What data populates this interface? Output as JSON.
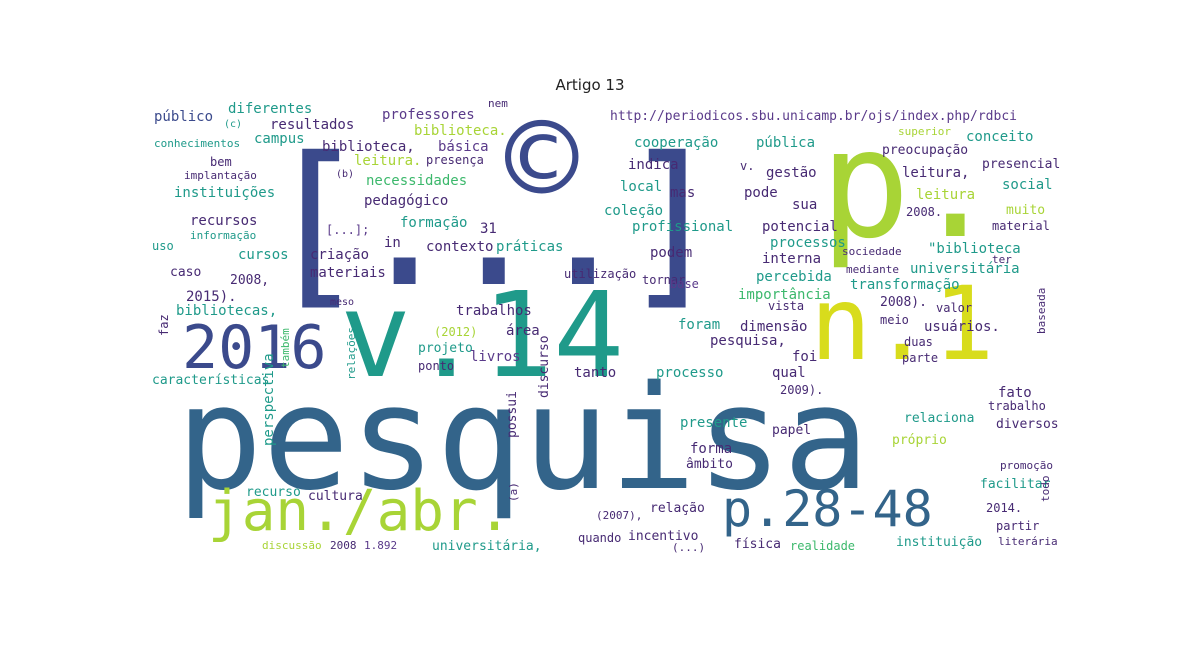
{
  "title": "Artigo 13",
  "colors": {
    "navy": "#3b4a8c",
    "blue": "#2c6a8e",
    "steel": "#33648a",
    "teal": "#1f9a8a",
    "green": "#3cb86c",
    "lime": "#a8d436",
    "yellow": "#d8dc1c",
    "purple": "#472a73",
    "violet": "#5a3a8a"
  },
  "words": [
    {
      "text": "pesquisa",
      "c": "steel"
    },
    {
      "text": "v.14",
      "c": "teal"
    },
    {
      "text": "[...]",
      "c": "navy"
    },
    {
      "text": "©",
      "c": "navy"
    },
    {
      "text": "p.",
      "c": "lime"
    },
    {
      "text": "n.1",
      "c": "yellow"
    },
    {
      "text": "2016",
      "c": "navy"
    },
    {
      "text": "jan./abr.",
      "c": "lime"
    },
    {
      "text": "p.28-48",
      "c": "steel"
    },
    {
      "text": "http://periodicos.sbu.unicamp.br/ojs/index.php/rdbci",
      "c": "violet"
    },
    {
      "text": "público",
      "c": "navy"
    },
    {
      "text": "diferentes",
      "c": "teal"
    },
    {
      "text": "professores",
      "c": "violet"
    },
    {
      "text": "resultados",
      "c": "purple"
    },
    {
      "text": "campus",
      "c": "teal"
    },
    {
      "text": "biblioteca.",
      "c": "lime"
    },
    {
      "text": "conhecimentos",
      "c": "teal"
    },
    {
      "text": "biblioteca,",
      "c": "purple"
    },
    {
      "text": "básica",
      "c": "violet"
    },
    {
      "text": "leitura.",
      "c": "lime"
    },
    {
      "text": "presença",
      "c": "purple"
    },
    {
      "text": "bem",
      "c": "purple"
    },
    {
      "text": "implantação",
      "c": "purple"
    },
    {
      "text": "instituições",
      "c": "teal"
    },
    {
      "text": "necessidades",
      "c": "green"
    },
    {
      "text": "recursos",
      "c": "purple"
    },
    {
      "text": "informação",
      "c": "teal"
    },
    {
      "text": "pedagógico",
      "c": "purple"
    },
    {
      "text": "formação",
      "c": "teal"
    },
    {
      "text": "cursos",
      "c": "teal"
    },
    {
      "text": "[...];",
      "c": "violet"
    },
    {
      "text": "uso",
      "c": "teal"
    },
    {
      "text": "criação",
      "c": "purple"
    },
    {
      "text": "in",
      "c": "purple"
    },
    {
      "text": "contexto",
      "c": "purple"
    },
    {
      "text": "práticas",
      "c": "teal"
    },
    {
      "text": "31",
      "c": "purple"
    },
    {
      "text": "caso",
      "c": "purple"
    },
    {
      "text": "materiais",
      "c": "purple"
    },
    {
      "text": "2008,",
      "c": "purple"
    },
    {
      "text": "2015).",
      "c": "purple"
    },
    {
      "text": "bibliotecas,",
      "c": "teal"
    },
    {
      "text": "trabalhos",
      "c": "purple"
    },
    {
      "text": "(2012)",
      "c": "lime"
    },
    {
      "text": "projeto",
      "c": "teal"
    },
    {
      "text": "características",
      "c": "teal"
    },
    {
      "text": "também",
      "c": "green"
    },
    {
      "text": "relações",
      "c": "teal"
    },
    {
      "text": "ponto",
      "c": "purple"
    },
    {
      "text": "livros",
      "c": "violet"
    },
    {
      "text": "cooperação",
      "c": "teal"
    },
    {
      "text": "pública",
      "c": "teal"
    },
    {
      "text": "gestão",
      "c": "purple"
    },
    {
      "text": "indica",
      "c": "purple"
    },
    {
      "text": "local",
      "c": "teal"
    },
    {
      "text": "mas",
      "c": "purple"
    },
    {
      "text": "coleção",
      "c": "teal"
    },
    {
      "text": "profissional",
      "c": "teal"
    },
    {
      "text": "pode",
      "c": "purple"
    },
    {
      "text": "sua",
      "c": "purple"
    },
    {
      "text": "potencial",
      "c": "purple"
    },
    {
      "text": "processos",
      "c": "teal"
    },
    {
      "text": "interna",
      "c": "purple"
    },
    {
      "text": "podem",
      "c": "purple"
    },
    {
      "text": "utilização",
      "c": "purple"
    },
    {
      "text": "tornar",
      "c": "purple"
    },
    {
      "text": "base",
      "c": "violet"
    },
    {
      "text": "percebida",
      "c": "teal"
    },
    {
      "text": "importância",
      "c": "green"
    },
    {
      "text": "área",
      "c": "purple"
    },
    {
      "text": "foram",
      "c": "teal"
    },
    {
      "text": "dimensão",
      "c": "purple"
    },
    {
      "text": "pesquisa,",
      "c": "purple"
    },
    {
      "text": "foi",
      "c": "purple"
    },
    {
      "text": "processo",
      "c": "teal"
    },
    {
      "text": "qual",
      "c": "purple"
    },
    {
      "text": "tanto",
      "c": "purple"
    },
    {
      "text": "presente",
      "c": "teal"
    },
    {
      "text": "forma",
      "c": "purple"
    },
    {
      "text": "âmbito",
      "c": "purple"
    },
    {
      "text": "papel",
      "c": "purple"
    },
    {
      "text": "conceito",
      "c": "teal"
    },
    {
      "text": "preocupação",
      "c": "purple"
    },
    {
      "text": "presencial",
      "c": "purple"
    },
    {
      "text": "leitura,",
      "c": "purple"
    },
    {
      "text": "social",
      "c": "teal"
    },
    {
      "text": "leitura",
      "c": "lime"
    },
    {
      "text": "2008.",
      "c": "purple"
    },
    {
      "text": "muito",
      "c": "lime"
    },
    {
      "text": "material",
      "c": "purple"
    },
    {
      "text": "\"biblioteca",
      "c": "teal"
    },
    {
      "text": "sociedade",
      "c": "purple"
    },
    {
      "text": "mediante",
      "c": "purple"
    },
    {
      "text": "universitária",
      "c": "teal"
    },
    {
      "text": "transformação",
      "c": "teal"
    },
    {
      "text": "2008).",
      "c": "purple"
    },
    {
      "text": "valor",
      "c": "purple"
    },
    {
      "text": "meio",
      "c": "purple"
    },
    {
      "text": "usuários.",
      "c": "purple"
    },
    {
      "text": "duas",
      "c": "purple"
    },
    {
      "text": "parte",
      "c": "purple"
    },
    {
      "text": "2009).",
      "c": "purple"
    },
    {
      "text": "fato",
      "c": "purple"
    },
    {
      "text": "trabalho",
      "c": "purple"
    },
    {
      "text": "relaciona",
      "c": "teal"
    },
    {
      "text": "diversos",
      "c": "purple"
    },
    {
      "text": "próprio",
      "c": "lime"
    },
    {
      "text": "promoção",
      "c": "purple"
    },
    {
      "text": "facilitar",
      "c": "teal"
    },
    {
      "text": "2014.",
      "c": "purple"
    },
    {
      "text": "partir",
      "c": "purple"
    },
    {
      "text": "literária",
      "c": "purple"
    },
    {
      "text": "instituição",
      "c": "teal"
    },
    {
      "text": "física",
      "c": "purple"
    },
    {
      "text": "realidade",
      "c": "green"
    },
    {
      "text": "incentivo",
      "c": "purple"
    },
    {
      "text": "quando",
      "c": "purple"
    },
    {
      "text": "(...)",
      "c": "purple"
    },
    {
      "text": "relação",
      "c": "purple"
    },
    {
      "text": "(2007),",
      "c": "purple"
    },
    {
      "text": "universitária,",
      "c": "teal"
    },
    {
      "text": "perspectiva",
      "c": "teal"
    },
    {
      "text": "recurso",
      "c": "teal"
    },
    {
      "text": "cultura",
      "c": "purple"
    },
    {
      "text": "discussão",
      "c": "lime"
    },
    {
      "text": "2008",
      "c": "purple"
    },
    {
      "text": "1.892",
      "c": "violet"
    },
    {
      "text": "faz",
      "c": "purple"
    },
    {
      "text": "possui",
      "c": "purple"
    },
    {
      "text": "discurso",
      "c": "purple"
    },
    {
      "text": "meso",
      "c": "purple"
    },
    {
      "text": "todo",
      "c": "purple"
    },
    {
      "text": "baseada",
      "c": "purple"
    },
    {
      "text": "ter",
      "c": "purple"
    },
    {
      "text": "vista",
      "c": "purple"
    },
    {
      "text": "v.",
      "c": "purple"
    },
    {
      "text": "(c)",
      "c": "teal"
    },
    {
      "text": "(b)",
      "c": "purple"
    },
    {
      "text": "(a)",
      "c": "purple"
    },
    {
      "text": "nem",
      "c": "purple"
    },
    {
      "text": "superior",
      "c": "lime"
    }
  ]
}
